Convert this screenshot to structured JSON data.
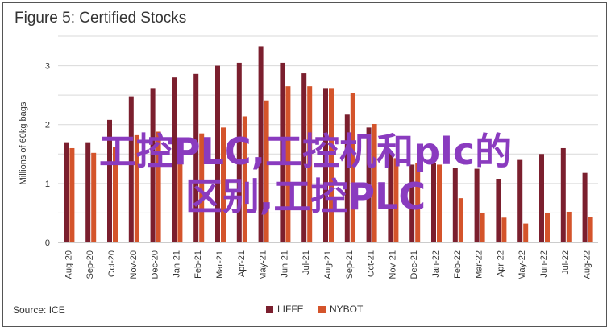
{
  "chart_data": {
    "type": "bar",
    "title": "Figure 5: Certified Stocks",
    "ylabel": "Millions of 60kg bags",
    "xlabel": "",
    "source": "Source: ICE",
    "ylim": [
      0,
      3.5
    ],
    "yticks": [
      0,
      1,
      2,
      3
    ],
    "grid": true,
    "legend": "bottom",
    "categories": [
      "Aug-20",
      "Sep-20",
      "Oct-20",
      "Nov-20",
      "Dec-20",
      "Jan-21",
      "Feb-21",
      "Mar-21",
      "Apr-21",
      "May-21",
      "Jun-21",
      "Jul-21",
      "Aug-21",
      "Sep-21",
      "Oct-21",
      "Nov-21",
      "Dec-21",
      "Jan-22",
      "Feb-22",
      "Mar-22",
      "Apr-22",
      "May-22",
      "Jun-22",
      "Jul-22",
      "Aug-22"
    ],
    "series": [
      {
        "name": "LIFFE",
        "color": "#7b1f2e",
        "values": [
          1.7,
          1.7,
          2.08,
          2.48,
          2.62,
          2.8,
          2.86,
          3.0,
          3.05,
          3.33,
          3.05,
          2.87,
          2.62,
          2.17,
          1.95,
          1.52,
          1.32,
          1.35,
          1.26,
          1.25,
          1.08,
          1.4,
          1.5,
          1.6,
          1.18
        ]
      },
      {
        "name": "NYBOT",
        "color": "#d4542b",
        "values": [
          1.6,
          1.52,
          1.62,
          1.82,
          1.88,
          1.48,
          1.85,
          1.95,
          2.14,
          2.41,
          2.65,
          2.65,
          2.62,
          2.53,
          2.01,
          1.43,
          1.34,
          1.32,
          0.75,
          0.5,
          0.42,
          0.32,
          0.5,
          0.52,
          0.43
        ]
      }
    ]
  },
  "overlay": {
    "line1": "工控PLC,工控机和plc的",
    "line2": "区别,工控PLC"
  }
}
